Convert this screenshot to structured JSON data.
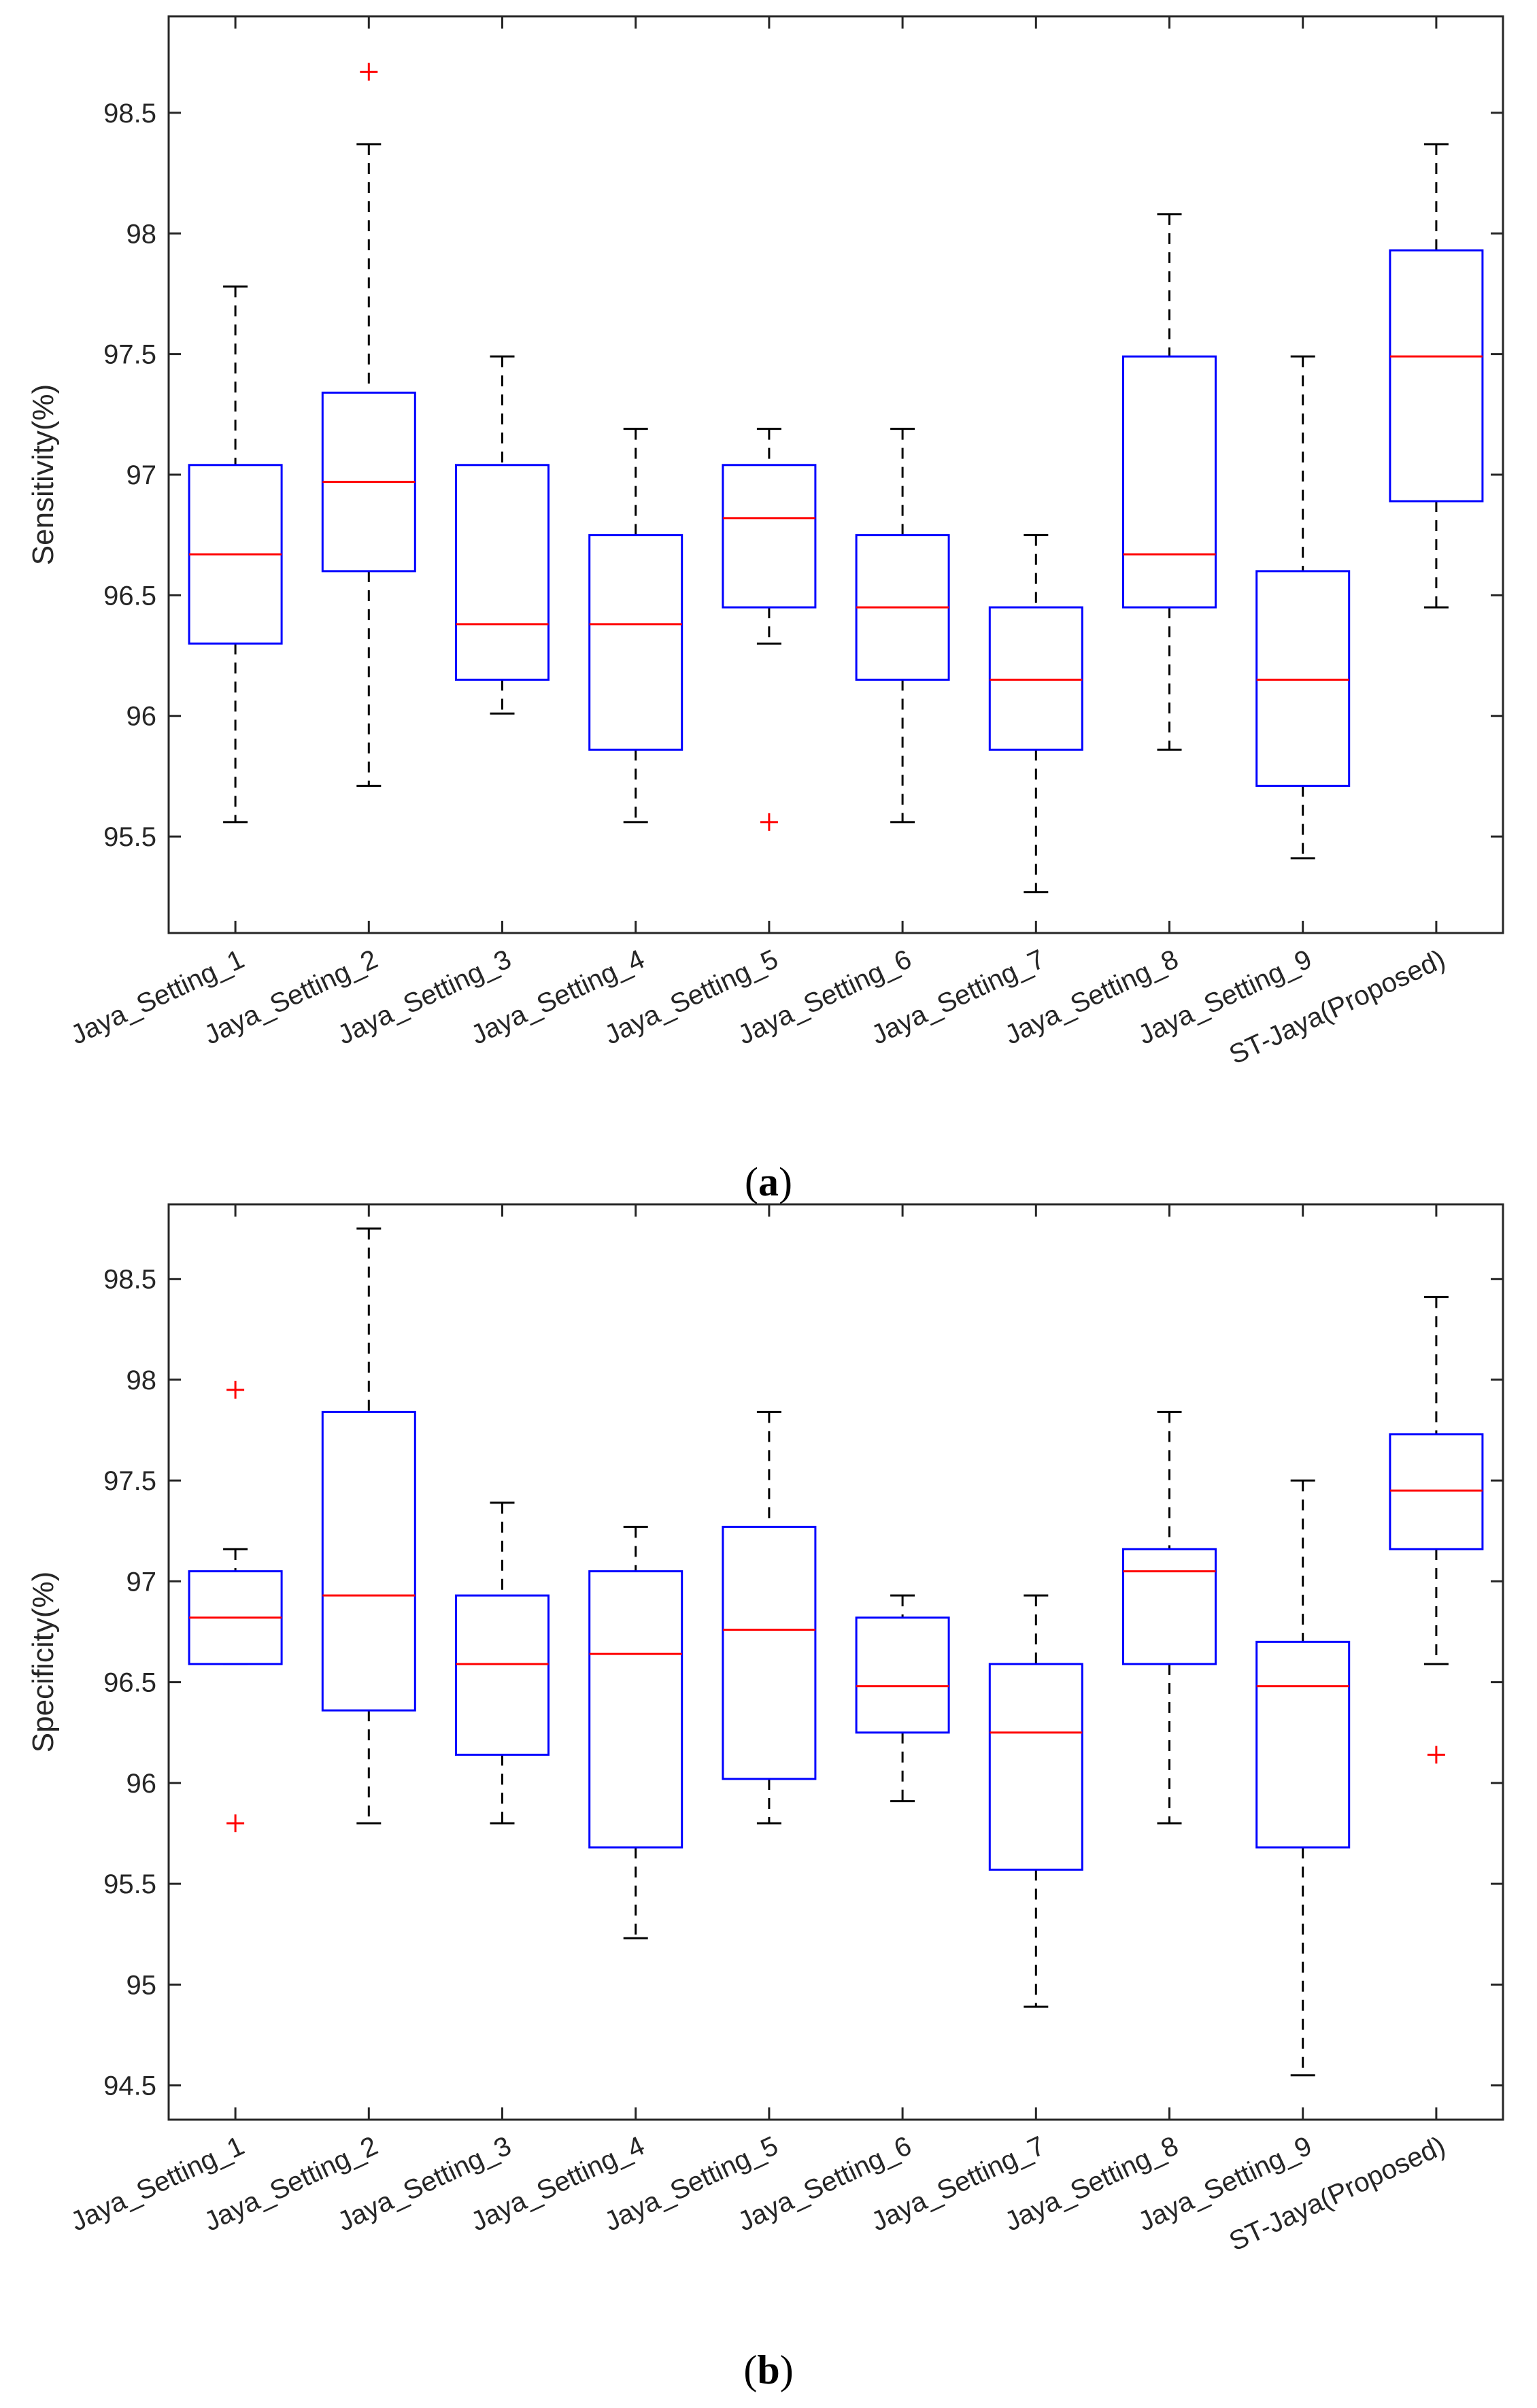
{
  "chart_data": [
    {
      "type": "box",
      "panel_label": "a",
      "title": "",
      "xlabel": "",
      "ylabel": "Sensitivity(%)",
      "ylim": [
        95.1,
        98.9
      ],
      "yticks": [
        95.5,
        96,
        96.5,
        97,
        97.5,
        98,
        98.5
      ],
      "ytick_labels": [
        "95.5",
        "96",
        "96.5",
        "97",
        "97.5",
        "98",
        "98.5"
      ],
      "categories": [
        "Jaya_Setting_1",
        "Jaya_Setting_2",
        "Jaya_Setting_3",
        "Jaya_Setting_4",
        "Jaya_Setting_5",
        "Jaya_Setting_6",
        "Jaya_Setting_7",
        "Jaya_Setting_8",
        "Jaya_Setting_9",
        "ST-Jaya(Proposed)"
      ],
      "boxes": [
        {
          "whisker_low": 95.56,
          "q1": 96.3,
          "median": 96.67,
          "q3": 97.04,
          "whisker_high": 97.78,
          "outliers": []
        },
        {
          "whisker_low": 95.71,
          "q1": 96.6,
          "median": 96.97,
          "q3": 97.34,
          "whisker_high": 98.37,
          "outliers": [
            98.67
          ]
        },
        {
          "whisker_low": 96.01,
          "q1": 96.15,
          "median": 96.38,
          "q3": 97.04,
          "whisker_high": 97.49,
          "outliers": []
        },
        {
          "whisker_low": 95.56,
          "q1": 95.86,
          "median": 96.38,
          "q3": 96.75,
          "whisker_high": 97.19,
          "outliers": []
        },
        {
          "whisker_low": 96.3,
          "q1": 96.45,
          "median": 96.82,
          "q3": 97.04,
          "whisker_high": 97.19,
          "outliers": [
            95.56
          ]
        },
        {
          "whisker_low": 95.56,
          "q1": 96.15,
          "median": 96.45,
          "q3": 96.75,
          "whisker_high": 97.19,
          "outliers": []
        },
        {
          "whisker_low": 95.27,
          "q1": 95.86,
          "median": 96.15,
          "q3": 96.45,
          "whisker_high": 96.75,
          "outliers": []
        },
        {
          "whisker_low": 95.86,
          "q1": 96.45,
          "median": 96.67,
          "q3": 97.49,
          "whisker_high": 98.08,
          "outliers": []
        },
        {
          "whisker_low": 95.41,
          "q1": 95.71,
          "median": 96.15,
          "q3": 96.6,
          "whisker_high": 97.49,
          "outliers": []
        },
        {
          "whisker_low": 96.45,
          "q1": 96.89,
          "median": 97.49,
          "q3": 97.93,
          "whisker_high": 98.37,
          "outliers": []
        }
      ],
      "colors": {
        "box": "#0000ff",
        "median": "#ff0000",
        "whisker": "#000000",
        "outlier": "#ff0000",
        "axis": "#262626"
      }
    },
    {
      "type": "box",
      "panel_label": "b",
      "title": "",
      "xlabel": "",
      "ylabel": "Specificity(%)",
      "ylim": [
        94.33,
        98.87
      ],
      "yticks": [
        94.5,
        95,
        95.5,
        96,
        96.5,
        97,
        97.5,
        98,
        98.5
      ],
      "ytick_labels": [
        "94.5",
        "95",
        "95.5",
        "96",
        "96.5",
        "97",
        "97.5",
        "98",
        "98.5"
      ],
      "categories": [
        "Jaya_Setting_1",
        "Jaya_Setting_2",
        "Jaya_Setting_3",
        "Jaya_Setting_4",
        "Jaya_Setting_5",
        "Jaya_Setting_6",
        "Jaya_Setting_7",
        "Jaya_Setting_8",
        "Jaya_Setting_9",
        "ST-Jaya(Proposed)"
      ],
      "boxes": [
        {
          "whisker_low": 96.59,
          "q1": 96.59,
          "median": 96.82,
          "q3": 97.05,
          "whisker_high": 97.16,
          "outliers": [
            97.95,
            95.8
          ]
        },
        {
          "whisker_low": 95.8,
          "q1": 96.36,
          "median": 96.93,
          "q3": 97.84,
          "whisker_high": 98.75,
          "outliers": []
        },
        {
          "whisker_low": 95.8,
          "q1": 96.14,
          "median": 96.59,
          "q3": 96.93,
          "whisker_high": 97.39,
          "outliers": []
        },
        {
          "whisker_low": 95.23,
          "q1": 95.68,
          "median": 96.64,
          "q3": 97.05,
          "whisker_high": 97.27,
          "outliers": []
        },
        {
          "whisker_low": 95.8,
          "q1": 96.02,
          "median": 96.76,
          "q3": 97.27,
          "whisker_high": 97.84,
          "outliers": []
        },
        {
          "whisker_low": 95.91,
          "q1": 96.25,
          "median": 96.48,
          "q3": 96.82,
          "whisker_high": 96.93,
          "outliers": []
        },
        {
          "whisker_low": 94.89,
          "q1": 95.57,
          "median": 96.25,
          "q3": 96.59,
          "whisker_high": 96.93,
          "outliers": []
        },
        {
          "whisker_low": 95.8,
          "q1": 96.59,
          "median": 97.05,
          "q3": 97.16,
          "whisker_high": 97.84,
          "outliers": []
        },
        {
          "whisker_low": 94.55,
          "q1": 95.68,
          "median": 96.48,
          "q3": 96.7,
          "whisker_high": 97.5,
          "outliers": []
        },
        {
          "whisker_low": 96.59,
          "q1": 97.16,
          "median": 97.45,
          "q3": 97.73,
          "whisker_high": 98.41,
          "outliers": [
            96.14
          ]
        }
      ],
      "colors": {
        "box": "#0000ff",
        "median": "#ff0000",
        "whisker": "#000000",
        "outlier": "#ff0000",
        "axis": "#262626"
      }
    }
  ]
}
